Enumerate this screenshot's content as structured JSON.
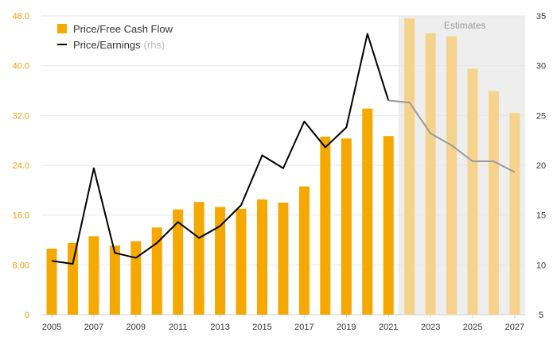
{
  "chart_data": {
    "type": "bar+line",
    "estimates_label": "Estimates",
    "estimates_from": 2022,
    "legend": {
      "bar_label": "Price/Free Cash Flow",
      "line_label": "Price/Earnings",
      "line_suffix": "(rhs)"
    },
    "x": [
      2005,
      2006,
      2007,
      2008,
      2009,
      2010,
      2011,
      2012,
      2013,
      2014,
      2015,
      2016,
      2017,
      2018,
      2019,
      2020,
      2021,
      2022,
      2023,
      2024,
      2025,
      2026,
      2027
    ],
    "x_tick_labels": [
      "2005",
      "2007",
      "2009",
      "2011",
      "2013",
      "2015",
      "2017",
      "2019",
      "2021",
      "2023",
      "2025",
      "2027"
    ],
    "series": [
      {
        "name": "Price/Free Cash Flow",
        "kind": "bar",
        "axis": "left",
        "values": [
          10.6,
          11.5,
          12.6,
          11.1,
          11.8,
          14.0,
          16.9,
          18.1,
          17.3,
          17.0,
          18.5,
          18.0,
          20.6,
          28.6,
          28.3,
          33.1,
          28.7,
          47.6,
          45.2,
          44.7,
          39.5,
          35.9,
          32.4
        ]
      },
      {
        "name": "Price/Earnings",
        "kind": "line",
        "axis": "right",
        "values": [
          10.4,
          10.1,
          19.7,
          11.2,
          10.7,
          12.2,
          14.3,
          12.7,
          13.9,
          16.0,
          21.0,
          19.7,
          24.4,
          21.8,
          23.8,
          33.2,
          26.5,
          26.3,
          23.2,
          22.0,
          20.4,
          20.4,
          19.3
        ]
      }
    ],
    "y_left": {
      "ylim": [
        0,
        48
      ],
      "ticks": [
        "0",
        "8.00",
        "16.0",
        "24.0",
        "32.0",
        "40.0",
        "48.0"
      ]
    },
    "y_right": {
      "ylim": [
        5,
        35
      ],
      "ticks": [
        "5",
        "10",
        "15",
        "20",
        "25",
        "30",
        "35"
      ]
    },
    "grid": true,
    "colors": {
      "bar": "#F5A800",
      "bar_estimate": "#F6D38C",
      "line": "#000000",
      "line_estimate": "#9a9a9a",
      "estimate_band": "#eeeeee",
      "estimates_text": "#999999",
      "left_tick": "#E8A000",
      "right_tick": "#333333",
      "grid": "#e6e6e6"
    }
  }
}
